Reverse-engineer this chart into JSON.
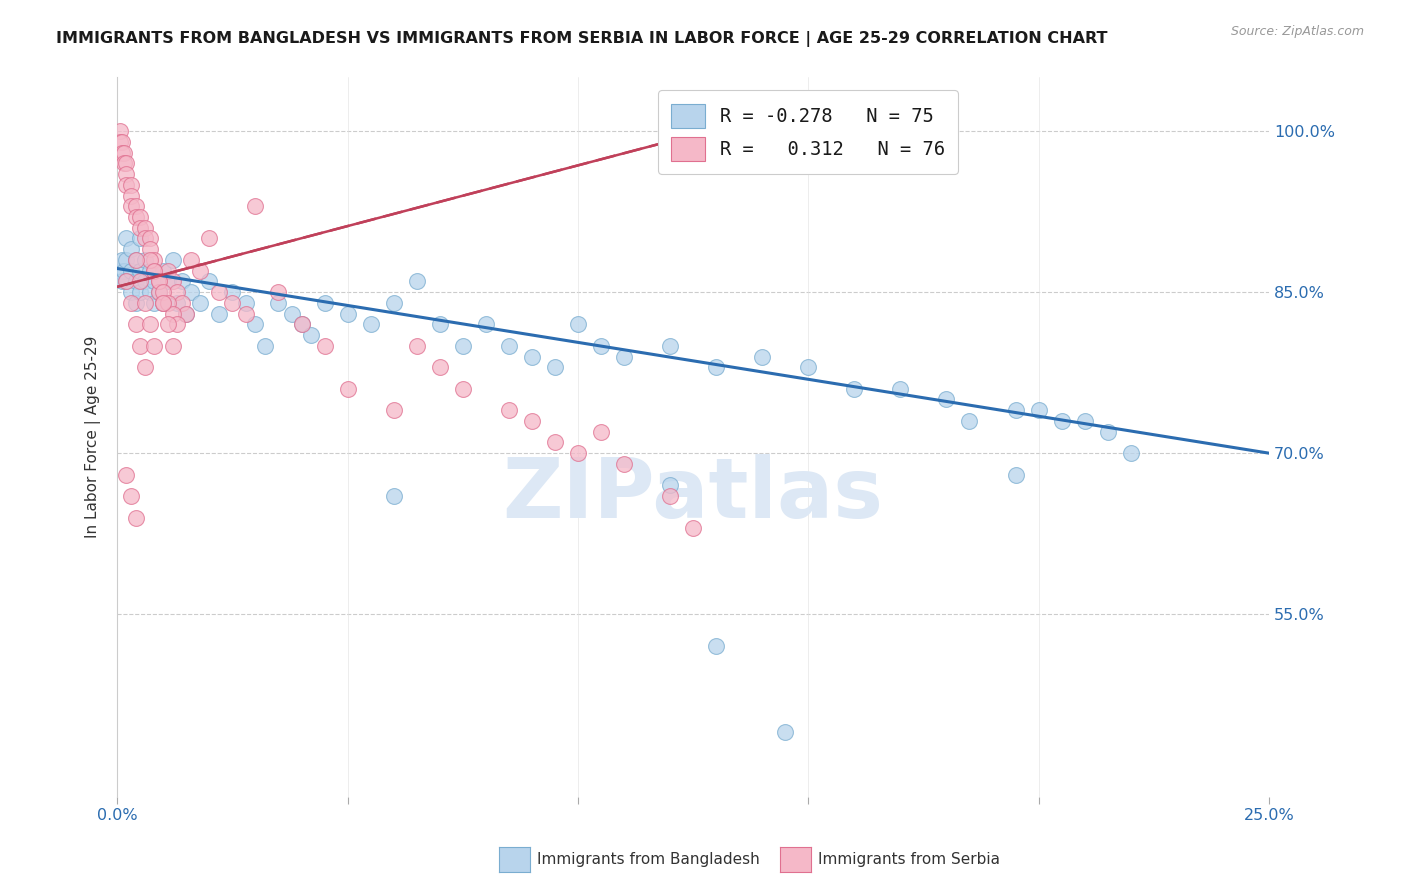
{
  "title": "IMMIGRANTS FROM BANGLADESH VS IMMIGRANTS FROM SERBIA IN LABOR FORCE | AGE 25-29 CORRELATION CHART",
  "source": "Source: ZipAtlas.com",
  "ylabel": "In Labor Force | Age 25-29",
  "x_range": [
    0.0,
    0.25
  ],
  "y_range": [
    0.38,
    1.05
  ],
  "y_ticks": [
    0.55,
    0.7,
    0.85,
    1.0
  ],
  "y_tick_labels": [
    "55.0%",
    "70.0%",
    "85.0%",
    "100.0%"
  ],
  "x_ticks": [
    0.0,
    0.05,
    0.1,
    0.15,
    0.2,
    0.25
  ],
  "legend1_label": "R = -0.278   N = 75",
  "legend2_label": "R =   0.312   N = 76",
  "legend1_color": "#b8d4ec",
  "legend2_color": "#f5b8c8",
  "line1_color": "#2b6cb0",
  "line2_color": "#c0405a",
  "dot1_color": "#b8d4ec",
  "dot2_color": "#f5b8c8",
  "dot_edge1": "#7aadd0",
  "dot_edge2": "#e07090",
  "watermark": "ZIPatlas",
  "watermark_color": "#dde8f5",
  "footer_label1": "Immigrants from Bangladesh",
  "footer_label2": "Immigrants from Serbia",
  "blue_line_x0": 0.0,
  "blue_line_y0": 0.872,
  "blue_line_x1": 0.25,
  "blue_line_y1": 0.7,
  "pink_line_x0": 0.0,
  "pink_line_y0": 0.855,
  "pink_line_x1": 0.13,
  "pink_line_y1": 1.002,
  "blue_x": [
    0.0005,
    0.001,
    0.001,
    0.0015,
    0.002,
    0.002,
    0.002,
    0.003,
    0.003,
    0.003,
    0.004,
    0.004,
    0.004,
    0.005,
    0.005,
    0.005,
    0.006,
    0.006,
    0.007,
    0.007,
    0.008,
    0.008,
    0.009,
    0.01,
    0.01,
    0.011,
    0.012,
    0.013,
    0.014,
    0.015,
    0.016,
    0.018,
    0.02,
    0.022,
    0.025,
    0.028,
    0.03,
    0.032,
    0.035,
    0.038,
    0.04,
    0.042,
    0.045,
    0.05,
    0.055,
    0.06,
    0.065,
    0.07,
    0.075,
    0.08,
    0.085,
    0.09,
    0.095,
    0.1,
    0.105,
    0.11,
    0.12,
    0.13,
    0.14,
    0.15,
    0.16,
    0.17,
    0.18,
    0.185,
    0.195,
    0.2,
    0.205,
    0.21,
    0.215,
    0.22,
    0.195,
    0.06,
    0.12,
    0.13,
    0.145
  ],
  "blue_y": [
    0.87,
    0.86,
    0.88,
    0.87,
    0.86,
    0.88,
    0.9,
    0.87,
    0.89,
    0.85,
    0.86,
    0.88,
    0.84,
    0.87,
    0.85,
    0.9,
    0.86,
    0.88,
    0.85,
    0.87,
    0.86,
    0.84,
    0.85,
    0.87,
    0.84,
    0.86,
    0.88,
    0.84,
    0.86,
    0.83,
    0.85,
    0.84,
    0.86,
    0.83,
    0.85,
    0.84,
    0.82,
    0.8,
    0.84,
    0.83,
    0.82,
    0.81,
    0.84,
    0.83,
    0.82,
    0.84,
    0.86,
    0.82,
    0.8,
    0.82,
    0.8,
    0.79,
    0.78,
    0.82,
    0.8,
    0.79,
    0.8,
    0.78,
    0.79,
    0.78,
    0.76,
    0.76,
    0.75,
    0.73,
    0.74,
    0.74,
    0.73,
    0.73,
    0.72,
    0.7,
    0.68,
    0.66,
    0.67,
    0.52,
    0.44
  ],
  "pink_x": [
    0.0005,
    0.0005,
    0.001,
    0.001,
    0.0015,
    0.0015,
    0.002,
    0.002,
    0.002,
    0.003,
    0.003,
    0.003,
    0.004,
    0.004,
    0.005,
    0.005,
    0.006,
    0.006,
    0.007,
    0.007,
    0.008,
    0.008,
    0.009,
    0.009,
    0.01,
    0.011,
    0.012,
    0.013,
    0.014,
    0.015,
    0.016,
    0.018,
    0.02,
    0.022,
    0.025,
    0.028,
    0.03,
    0.035,
    0.04,
    0.045,
    0.05,
    0.06,
    0.065,
    0.07,
    0.075,
    0.085,
    0.09,
    0.095,
    0.1,
    0.105,
    0.11,
    0.12,
    0.125,
    0.007,
    0.008,
    0.009,
    0.01,
    0.011,
    0.012,
    0.013,
    0.002,
    0.003,
    0.004,
    0.005,
    0.006,
    0.004,
    0.005,
    0.006,
    0.007,
    0.008,
    0.01,
    0.011,
    0.012,
    0.002,
    0.003,
    0.004
  ],
  "pink_y": [
    1.0,
    0.99,
    0.99,
    0.98,
    0.98,
    0.97,
    0.97,
    0.96,
    0.95,
    0.95,
    0.94,
    0.93,
    0.93,
    0.92,
    0.92,
    0.91,
    0.91,
    0.9,
    0.9,
    0.89,
    0.88,
    0.87,
    0.86,
    0.85,
    0.84,
    0.87,
    0.86,
    0.85,
    0.84,
    0.83,
    0.88,
    0.87,
    0.9,
    0.85,
    0.84,
    0.83,
    0.93,
    0.85,
    0.82,
    0.8,
    0.76,
    0.74,
    0.8,
    0.78,
    0.76,
    0.74,
    0.73,
    0.71,
    0.7,
    0.72,
    0.69,
    0.66,
    0.63,
    0.88,
    0.87,
    0.86,
    0.85,
    0.84,
    0.83,
    0.82,
    0.86,
    0.84,
    0.82,
    0.8,
    0.78,
    0.88,
    0.86,
    0.84,
    0.82,
    0.8,
    0.84,
    0.82,
    0.8,
    0.68,
    0.66,
    0.64
  ]
}
